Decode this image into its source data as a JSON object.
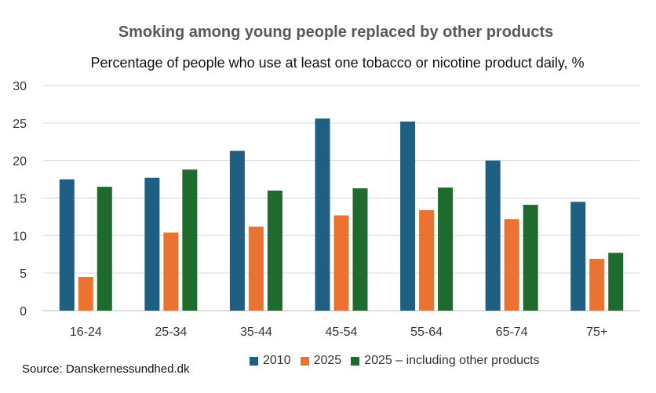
{
  "chart_data": {
    "type": "bar",
    "title": "Smoking among young people replaced by other products",
    "subtitle": "Percentage of people who use at least one tobacco or nicotine product daily, %",
    "categories": [
      "16-24",
      "25-34",
      "35-44",
      "45-54",
      "55-64",
      "65-74",
      "75+"
    ],
    "series": [
      {
        "name": "2010",
        "color": "#1f5f82",
        "values": [
          17.5,
          17.7,
          21.3,
          25.6,
          25.2,
          20.0,
          14.5
        ]
      },
      {
        "name": "2025",
        "color": "#ea7331",
        "values": [
          4.5,
          10.4,
          11.2,
          12.7,
          13.4,
          12.2,
          6.9
        ]
      },
      {
        "name": "2025 – including other products",
        "color": "#1f6b2e",
        "values": [
          16.5,
          18.8,
          16.0,
          16.3,
          16.4,
          14.1,
          7.7
        ]
      }
    ],
    "yticks": [
      0,
      5,
      10,
      15,
      20,
      25,
      30
    ],
    "ylim": [
      0,
      30
    ],
    "grid": true,
    "legend_position": "bottom",
    "source": "Source: Danskernessundhed.dk"
  }
}
